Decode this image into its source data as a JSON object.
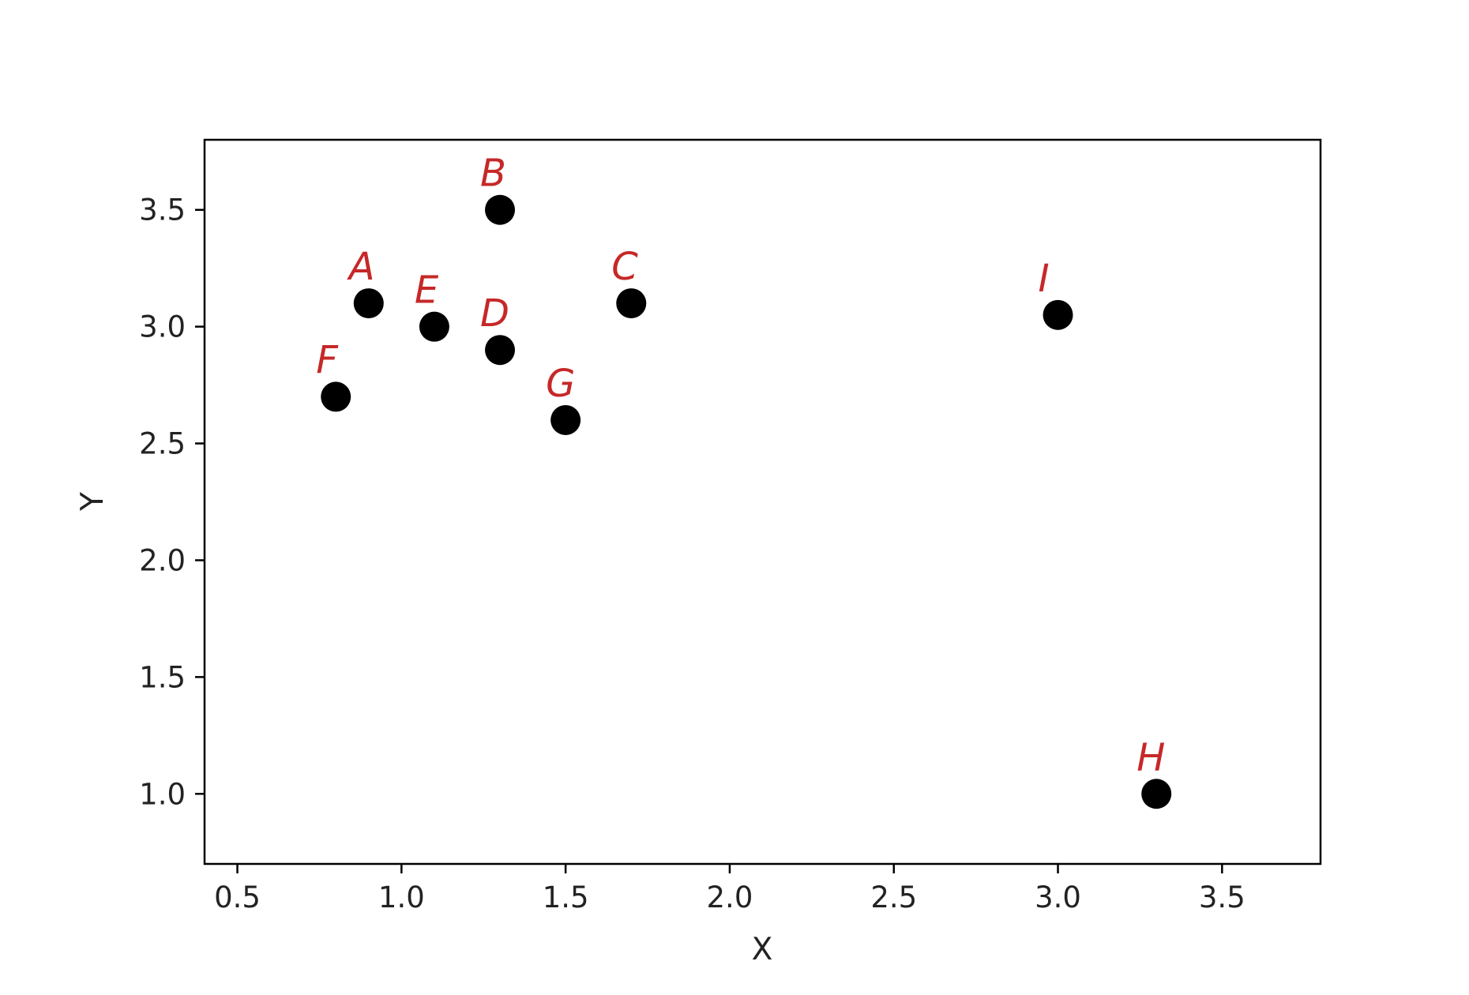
{
  "chart_data": {
    "type": "scatter",
    "title": "",
    "xlabel": "X",
    "ylabel": "Y",
    "xlim": [
      0.4,
      3.8
    ],
    "ylim": [
      0.7,
      3.8
    ],
    "xticks": [
      "0.5",
      "1.0",
      "1.5",
      "2.0",
      "2.5",
      "3.0",
      "3.5"
    ],
    "yticks": [
      "1.0",
      "1.5",
      "2.0",
      "2.5",
      "3.0",
      "3.5"
    ],
    "grid": false,
    "marker_color": "#000000",
    "label_color": "#c62828",
    "points": [
      {
        "label": "A",
        "x": 0.9,
        "y": 3.1
      },
      {
        "label": "B",
        "x": 1.3,
        "y": 3.5
      },
      {
        "label": "C",
        "x": 1.7,
        "y": 3.1
      },
      {
        "label": "D",
        "x": 1.3,
        "y": 2.9
      },
      {
        "label": "E",
        "x": 1.1,
        "y": 3.0
      },
      {
        "label": "F",
        "x": 0.8,
        "y": 2.7
      },
      {
        "label": "G",
        "x": 1.5,
        "y": 2.6
      },
      {
        "label": "H",
        "x": 3.3,
        "y": 1.0
      },
      {
        "label": "I",
        "x": 3.0,
        "y": 3.05
      }
    ]
  }
}
